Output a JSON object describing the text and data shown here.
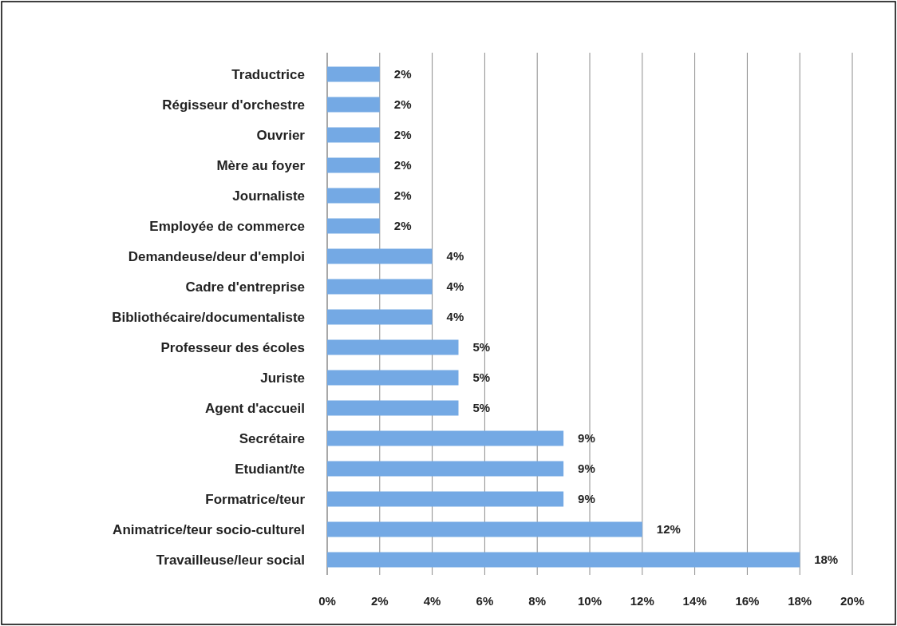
{
  "chart_data": {
    "type": "bar",
    "orientation": "horizontal",
    "categories": [
      "Traductrice",
      "Régisseur d'orchestre",
      "Ouvrier",
      "Mère au foyer",
      "Journaliste",
      "Employée de commerce",
      "Demandeuse/deur d'emploi",
      "Cadre d'entreprise",
      "Bibliothécaire/documentaliste",
      "Professeur des écoles",
      "Juriste",
      "Agent d'accueil",
      "Secrétaire",
      "Etudiant/te",
      "Formatrice/teur",
      "Animatrice/teur socio-culturel",
      "Travailleuse/leur social"
    ],
    "values": [
      2,
      2,
      2,
      2,
      2,
      2,
      4,
      4,
      4,
      5,
      5,
      5,
      9,
      9,
      9,
      12,
      18
    ],
    "value_labels": [
      "2%",
      "2%",
      "2%",
      "2%",
      "2%",
      "2%",
      "4%",
      "4%",
      "4%",
      "5%",
      "5%",
      "5%",
      "9%",
      "9%",
      "9%",
      "12%",
      "18%"
    ],
    "color": "#74a9e4",
    "xlim": [
      0,
      20
    ],
    "xticks": [
      {
        "value": 0,
        "label": "0%"
      },
      {
        "value": 2,
        "label": "2%"
      },
      {
        "value": 4,
        "label": "4%"
      },
      {
        "value": 6,
        "label": "6%"
      },
      {
        "value": 8,
        "label": "8%"
      },
      {
        "value": 10,
        "label": "10%"
      },
      {
        "value": 12,
        "label": "12%"
      },
      {
        "value": 14,
        "label": "14%"
      },
      {
        "value": 16,
        "label": "16%"
      },
      {
        "value": 18,
        "label": "18%"
      },
      {
        "value": 20,
        "label": "20%"
      }
    ],
    "grid": "x"
  }
}
